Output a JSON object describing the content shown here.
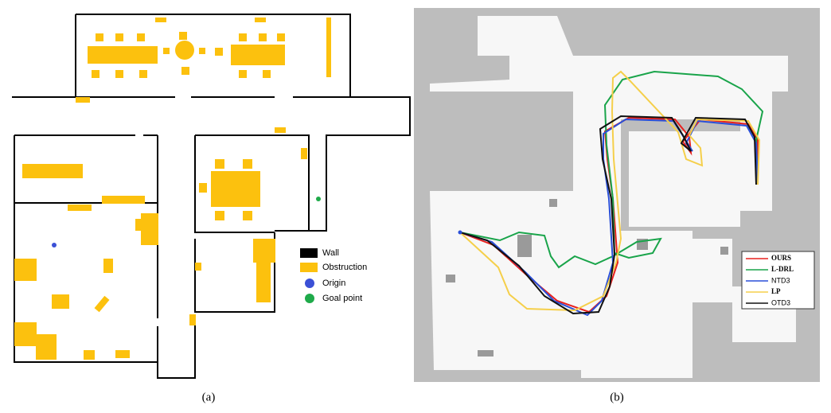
{
  "panel_a": {
    "label": "(a)",
    "legend": [
      {
        "name": "Wall",
        "color": "#000000"
      },
      {
        "name": "Obstruction",
        "color": "#fcc10e"
      },
      {
        "name": "Origin",
        "color": "#3b50d6"
      },
      {
        "name": "Goal point",
        "color": "#1faa4a"
      }
    ]
  },
  "panel_b": {
    "label": "(b)",
    "legend": [
      {
        "name": "OURS",
        "color": "#e8201e"
      },
      {
        "name": "L-DRL",
        "color": "#19a44a"
      },
      {
        "name": "NTD3",
        "color": "#2a4fd8"
      },
      {
        "name": "LP",
        "color": "#f5cf4a"
      },
      {
        "name": "OTD3",
        "color": "#111111"
      }
    ]
  }
}
